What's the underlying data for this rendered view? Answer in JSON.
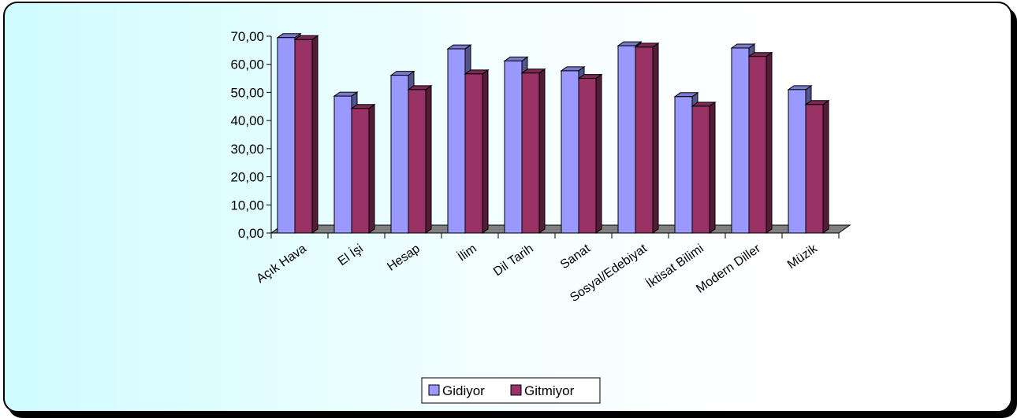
{
  "chart_data": {
    "type": "bar",
    "title": "",
    "xlabel": "",
    "ylabel": "",
    "ylim": [
      0,
      70
    ],
    "yticks": [
      "0,00",
      "10,00",
      "20,00",
      "30,00",
      "40,00",
      "50,00",
      "60,00",
      "70,00"
    ],
    "categories": [
      "Açık Hava",
      "El İşi",
      "Hesap",
      "İlim",
      "Dil Tarih",
      "Sanat",
      "Sosyal/Edebiyat",
      "İktisat Bilimi",
      "Modern Diller",
      "Müzik"
    ],
    "series": [
      {
        "name": "Gidiyor",
        "values": [
          69.5,
          48.7,
          56.1,
          65.5,
          61.2,
          57.7,
          66.6,
          48.5,
          65.8,
          51.0
        ]
      },
      {
        "name": "Gitmiyor",
        "values": [
          68.8,
          44.3,
          51.0,
          56.6,
          56.9,
          55.0,
          66.1,
          45.1,
          62.8,
          45.7
        ]
      }
    ],
    "legend_position": "bottom",
    "grid": false,
    "colors": {
      "Gidiyor": "#9999ff",
      "Gitmiyor": "#993366"
    }
  }
}
